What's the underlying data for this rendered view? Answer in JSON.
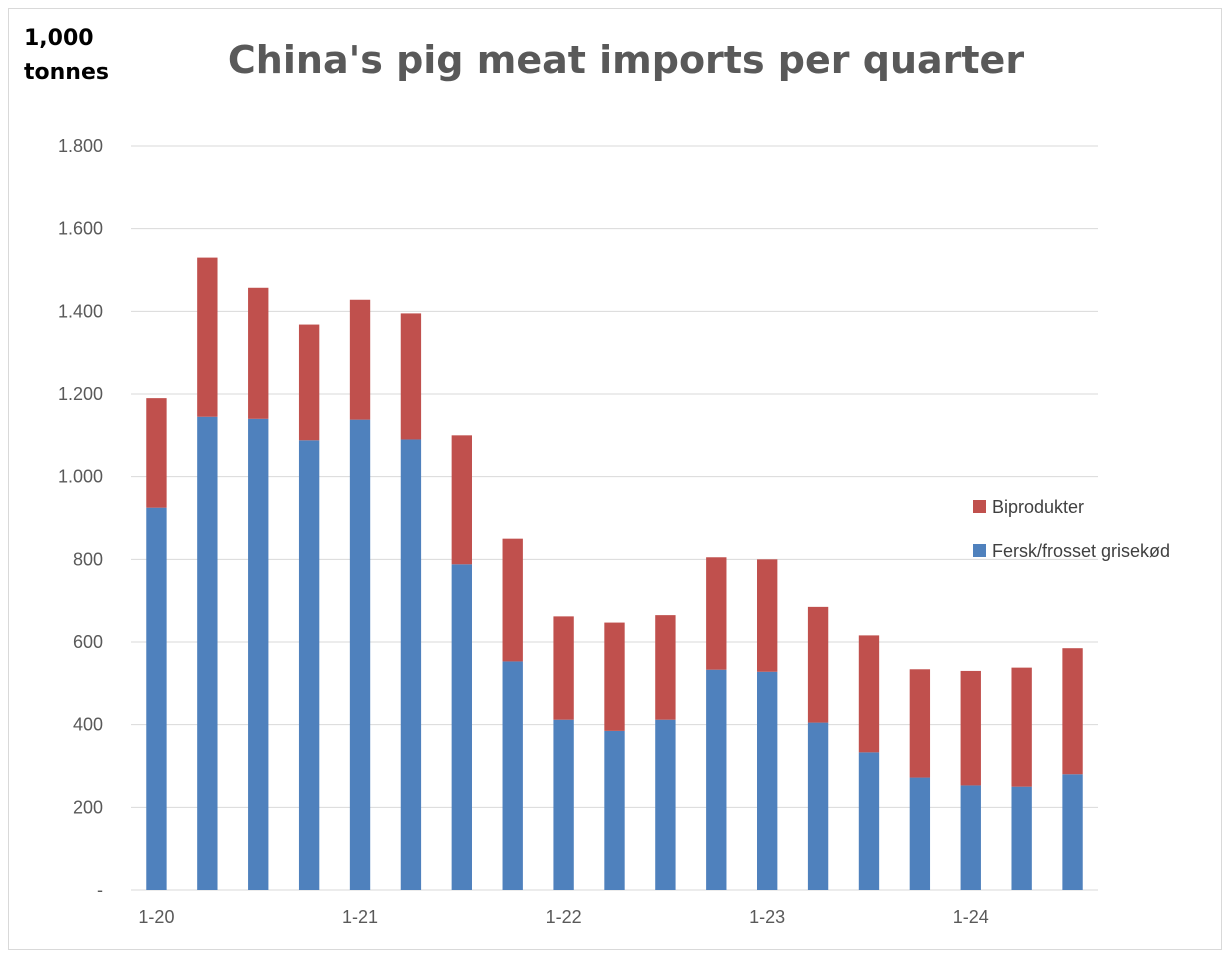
{
  "chart_data": {
    "type": "bar",
    "stacked": true,
    "title": "China's pig meat imports per quarter",
    "ylabel_lines": [
      "1,000",
      "tonnes"
    ],
    "ylim": [
      0,
      1800
    ],
    "y_ticks": [
      {
        "value": 0,
        "label": "-"
      },
      {
        "value": 200,
        "label": "200"
      },
      {
        "value": 400,
        "label": "400"
      },
      {
        "value": 600,
        "label": "600"
      },
      {
        "value": 800,
        "label": "800"
      },
      {
        "value": 1000,
        "label": "1.000"
      },
      {
        "value": 1200,
        "label": "1.200"
      },
      {
        "value": 1400,
        "label": "1.400"
      },
      {
        "value": 1600,
        "label": "1.600"
      },
      {
        "value": 1800,
        "label": "1.800"
      }
    ],
    "grid": true,
    "legend_position": "right",
    "categories": [
      "1-20",
      "2-20",
      "3-20",
      "4-20",
      "1-21",
      "2-21",
      "3-21",
      "4-21",
      "1-22",
      "2-22",
      "3-22",
      "4-22",
      "1-23",
      "2-23",
      "3-23",
      "4-23",
      "1-24",
      "2-24",
      "3-24"
    ],
    "x_tick_labels": [
      {
        "index": 0,
        "label": "1-20"
      },
      {
        "index": 4,
        "label": "1-21"
      },
      {
        "index": 8,
        "label": "1-22"
      },
      {
        "index": 12,
        "label": "1-23"
      },
      {
        "index": 16,
        "label": "1-24"
      }
    ],
    "series": [
      {
        "name": "Fersk/frosset grisekød",
        "color": "#4f81bd",
        "values": [
          925,
          1145,
          1140,
          1088,
          1138,
          1090,
          788,
          553,
          412,
          385,
          412,
          533,
          528,
          405,
          333,
          272,
          253,
          250,
          280
        ]
      },
      {
        "name": "Biprodukter",
        "color": "#c0504d",
        "values": [
          265,
          385,
          317,
          280,
          290,
          305,
          312,
          297,
          250,
          262,
          253,
          272,
          272,
          280,
          283,
          262,
          277,
          288,
          305
        ]
      }
    ],
    "legend_order": [
      "Biprodukter",
      "Fersk/frosset grisekød"
    ]
  }
}
